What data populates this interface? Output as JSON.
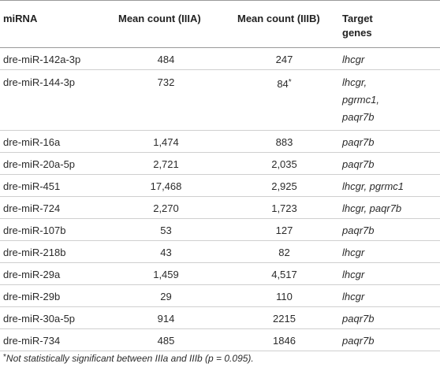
{
  "table": {
    "headers": {
      "mirna": "miRNA",
      "mean_a": "Mean count (IIIA)",
      "mean_b": "Mean count (IIIB)",
      "targets_line1": "Target",
      "targets_line2": "genes"
    },
    "rows": [
      {
        "mirna": "dre-miR-142a-3p",
        "mean_a": "484",
        "mean_b": "247",
        "mean_b_mark": "",
        "targets": [
          "lhcgr"
        ]
      },
      {
        "mirna": "dre-miR-144-3p",
        "mean_a": "732",
        "mean_b": "84",
        "mean_b_mark": "*",
        "targets": [
          "lhcgr,",
          "pgrmc1,",
          "paqr7b"
        ]
      },
      {
        "mirna": "dre-miR-16a",
        "mean_a": "1,474",
        "mean_b": "883",
        "mean_b_mark": "",
        "targets": [
          "paqr7b"
        ]
      },
      {
        "mirna": "dre-miR-20a-5p",
        "mean_a": "2,721",
        "mean_b": "2,035",
        "mean_b_mark": "",
        "targets": [
          "paqr7b"
        ]
      },
      {
        "mirna": "dre-miR-451",
        "mean_a": "17,468",
        "mean_b": "2,925",
        "mean_b_mark": "",
        "targets": [
          "lhcgr, pgrmc1"
        ]
      },
      {
        "mirna": "dre-miR-724",
        "mean_a": "2,270",
        "mean_b": "1,723",
        "mean_b_mark": "",
        "targets": [
          "lhcgr, paqr7b"
        ]
      },
      {
        "mirna": "dre-miR-107b",
        "mean_a": "53",
        "mean_b": "127",
        "mean_b_mark": "",
        "targets": [
          "paqr7b"
        ]
      },
      {
        "mirna": "dre-miR-218b",
        "mean_a": "43",
        "mean_b": "82",
        "mean_b_mark": "",
        "targets": [
          "lhcgr"
        ]
      },
      {
        "mirna": "dre-miR-29a",
        "mean_a": "1,459",
        "mean_b": "4,517",
        "mean_b_mark": "",
        "targets": [
          "lhcgr"
        ]
      },
      {
        "mirna": "dre-miR-29b",
        "mean_a": "29",
        "mean_b": "110",
        "mean_b_mark": "",
        "targets": [
          "lhcgr"
        ]
      },
      {
        "mirna": "dre-miR-30a-5p",
        "mean_a": "914",
        "mean_b": "2215",
        "mean_b_mark": "",
        "targets": [
          "paqr7b"
        ]
      },
      {
        "mirna": "dre-miR-734",
        "mean_a": "485",
        "mean_b": "1846",
        "mean_b_mark": "",
        "targets": [
          "paqr7b"
        ]
      }
    ]
  },
  "footnote": {
    "marker": "*",
    "text": "Not statistically significant between IIIa and IIIb (p = 0.095)."
  }
}
